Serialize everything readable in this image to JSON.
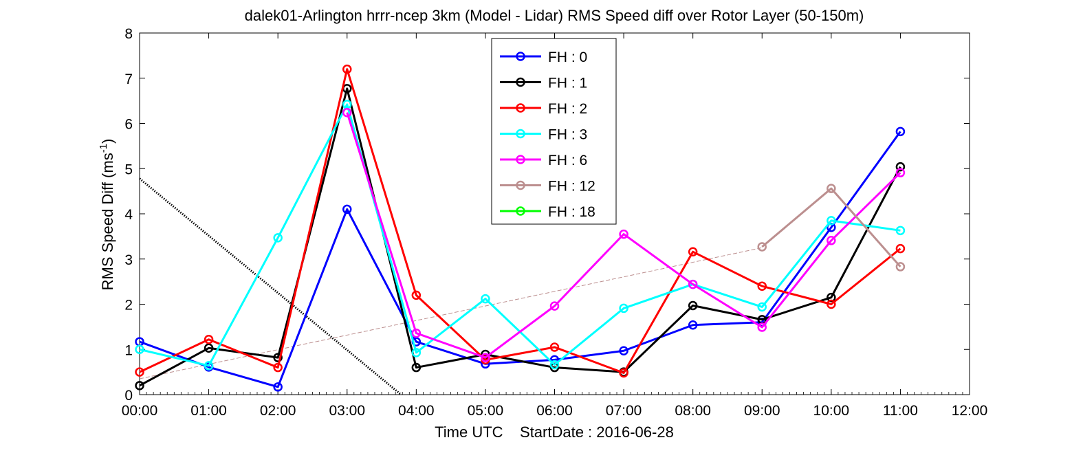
{
  "chart_data": {
    "type": "line",
    "title": "dalek01-Arlington hrrr-ncep 3km (Model - Lidar) RMS Speed diff over Rotor Layer (50-150m)",
    "xlabel": "Time UTC    StartDate : 2016-06-28",
    "ylabel": "RMS Speed Diff (ms",
    "ylabel_sup": "-1",
    "ylabel_close": ")",
    "xlim": [
      0,
      12
    ],
    "ylim": [
      0,
      8
    ],
    "x_ticks": [
      0,
      1,
      2,
      3,
      4,
      5,
      6,
      7,
      8,
      9,
      10,
      11,
      12
    ],
    "x_tick_labels": [
      "00:00",
      "01:00",
      "02:00",
      "03:00",
      "04:00",
      "05:00",
      "06:00",
      "07:00",
      "08:00",
      "09:00",
      "10:00",
      "11:00",
      "12:00"
    ],
    "y_ticks": [
      0,
      1,
      2,
      3,
      4,
      5,
      6,
      7,
      8
    ],
    "y_tick_labels": [
      "0",
      "1",
      "2",
      "3",
      "4",
      "5",
      "6",
      "7",
      "8"
    ],
    "grid": false,
    "legend_position": "top-center",
    "series": [
      {
        "name": "FH : 0",
        "color": "#0000ff",
        "x": [
          0,
          1,
          2,
          3,
          4,
          5,
          6,
          7,
          8,
          9,
          10,
          11
        ],
        "values": [
          1.17,
          0.61,
          0.17,
          4.1,
          1.17,
          0.68,
          0.77,
          0.97,
          1.54,
          1.6,
          3.7,
          5.82
        ]
      },
      {
        "name": "FH : 1",
        "color": "#000000",
        "x": [
          0,
          1,
          2,
          3,
          4,
          5,
          6,
          7,
          8,
          9,
          10,
          11
        ],
        "values": [
          0.2,
          1.03,
          0.82,
          6.77,
          0.6,
          0.89,
          0.6,
          0.5,
          1.97,
          1.66,
          2.15,
          5.04
        ]
      },
      {
        "name": "FH : 2",
        "color": "#ff0000",
        "x": [
          0,
          1,
          2,
          3,
          4,
          5,
          6,
          7,
          8,
          9,
          10,
          11
        ],
        "values": [
          0.5,
          1.22,
          0.6,
          7.2,
          2.2,
          0.77,
          1.05,
          0.48,
          3.16,
          2.4,
          2.0,
          3.23
        ]
      },
      {
        "name": "FH : 3",
        "color": "#00ffff",
        "x": [
          0,
          1,
          2,
          3,
          4,
          5,
          6,
          7,
          8,
          9,
          10,
          11
        ],
        "values": [
          1.0,
          0.64,
          3.47,
          6.42,
          0.93,
          2.12,
          0.66,
          1.91,
          2.44,
          1.94,
          3.85,
          3.63
        ]
      },
      {
        "name": "FH : 6",
        "color": "#ff00ff",
        "x": [
          3,
          4,
          5,
          6,
          7,
          8,
          9,
          10,
          11
        ],
        "values": [
          6.24,
          1.36,
          0.82,
          1.96,
          3.55,
          2.44,
          1.49,
          3.41,
          4.91
        ]
      },
      {
        "name": "FH : 12",
        "color": "#bc8f8f",
        "x": [
          9,
          10,
          11
        ],
        "values": [
          3.27,
          4.56,
          2.83
        ]
      },
      {
        "name": "FH : 18",
        "color": "#00ff00",
        "x": [],
        "values": []
      }
    ],
    "trend_lines": [
      {
        "style": "dotted",
        "color": "#000000",
        "x": [
          0,
          3.78
        ],
        "values": [
          4.78,
          0
        ]
      },
      {
        "style": "dashed",
        "color": "#bc8f8f",
        "x": [
          0,
          9
        ],
        "values": [
          0.35,
          3.25
        ]
      }
    ]
  }
}
